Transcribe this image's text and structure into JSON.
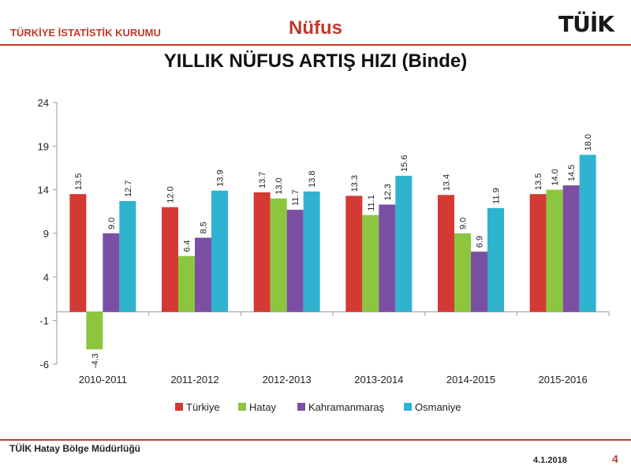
{
  "header": {
    "org": "TÜRKİYE İSTATİSTİK KURUMU",
    "title": "Nüfus",
    "logo_text": "TÜİK"
  },
  "footer": {
    "org": "TÜİK Hatay Bölge Müdürlüğü",
    "date": "4.1.2018",
    "page": "4"
  },
  "chart_data": {
    "type": "bar",
    "title": "YILLIK NÜFUS ARTIŞ HIZI (Binde)",
    "categories": [
      "2010-2011",
      "2011-2012",
      "2012-2013",
      "2013-2014",
      "2014-2015",
      "2015-2016"
    ],
    "series": [
      {
        "name": "Türkiye",
        "color": "#d33a33",
        "values": [
          13.5,
          12.0,
          13.7,
          13.3,
          13.4,
          13.5
        ],
        "labels": [
          "13.5",
          "12.0",
          "13.7",
          "13.3",
          "13.4",
          "13.5"
        ]
      },
      {
        "name": "Hatay",
        "color": "#8cc63f",
        "values": [
          -4.3,
          6.4,
          13.0,
          11.1,
          9.0,
          14.0
        ],
        "labels": [
          "-4.3",
          "6.4",
          "13.0",
          "11.1",
          "9.0",
          "14.0"
        ]
      },
      {
        "name": "Kahramanmaraş",
        "color": "#7b4fa3",
        "values": [
          9.0,
          8.5,
          11.7,
          12.3,
          6.9,
          14.5
        ],
        "labels": [
          "9.0",
          "8.5",
          "11.7",
          "12.3",
          "6.9",
          "14.5"
        ]
      },
      {
        "name": "Osmaniye",
        "color": "#2fb3d1",
        "values": [
          12.7,
          13.9,
          13.8,
          15.6,
          11.9,
          18.0
        ],
        "labels": [
          "12.7",
          "13.9",
          "13.8",
          "15.6",
          "11.9",
          "18.0"
        ]
      }
    ],
    "yticks": [
      "24",
      "19",
      "14",
      "9",
      "4",
      "-1",
      "-6"
    ],
    "ylim": [
      -6,
      24
    ],
    "legend_position": "bottom",
    "grid": false
  }
}
